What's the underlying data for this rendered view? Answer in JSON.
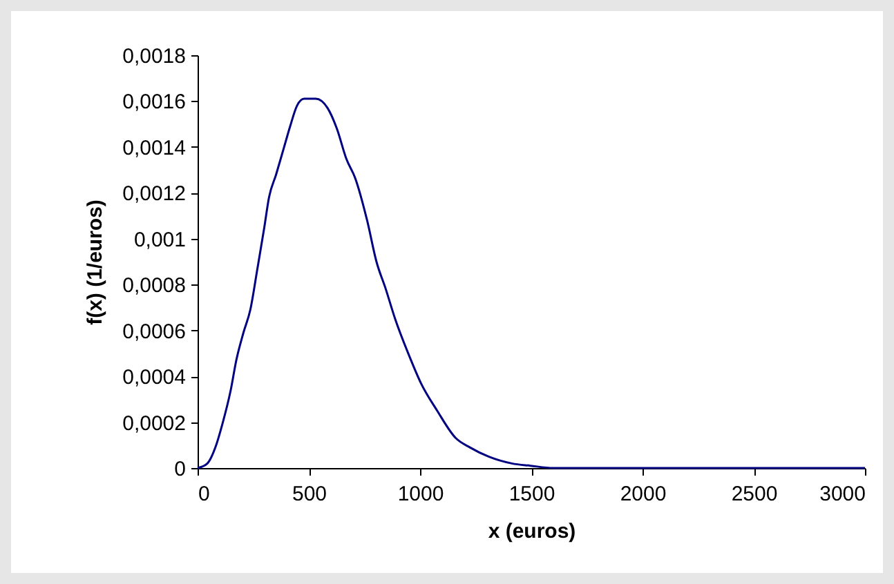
{
  "chart_data": {
    "type": "line",
    "xlabel": "x (euros)",
    "ylabel": "f(x) (1/euros)",
    "x": [
      0,
      44,
      80,
      111,
      149,
      174,
      206,
      237,
      269,
      300,
      321,
      353,
      389,
      416,
      447,
      479,
      531,
      584,
      626,
      668,
      710,
      762,
      804,
      846,
      888,
      951,
      1004,
      1077,
      1161,
      1224,
      1308,
      1413,
      1497,
      1600,
      2000,
      2500,
      3000
    ],
    "series": [
      {
        "color": "#000080",
        "values": [
          0,
          2e-05,
          9e-05,
          0.00019,
          0.00034,
          0.00047,
          0.00059,
          0.00069,
          0.00087,
          0.00105,
          0.00118,
          0.00128,
          0.0014,
          0.00149,
          0.00158,
          0.00161,
          0.00161,
          0.00157,
          0.00148,
          0.00135,
          0.00126,
          0.00108,
          0.0009,
          0.00078,
          0.00065,
          0.00049,
          0.00037,
          0.00025,
          0.00013,
          9e-05,
          5e-05,
          2e-05,
          1e-05,
          0,
          0,
          0,
          0
        ]
      }
    ],
    "xlim": [
      0,
      3000
    ],
    "xticks": [
      0,
      500,
      1000,
      1500,
      2000,
      2500,
      3000
    ],
    "ylim": [
      0,
      0.0018
    ],
    "yticks": [
      0,
      {
        "value": 0.0002,
        "label": "0,0002"
      },
      {
        "value": 0.0004,
        "label": "0,0004"
      },
      {
        "value": 0.0006,
        "label": "0,0006"
      },
      {
        "value": 0.0008,
        "label": "0,0008"
      },
      {
        "value": 0.001,
        "label": "0,001"
      },
      {
        "value": 0.0012,
        "label": "0,0012"
      },
      {
        "value": 0.0014,
        "label": "0,0014"
      },
      {
        "value": 0.0016,
        "label": "0,0016"
      },
      {
        "value": 0.0018,
        "label": "0,0018"
      }
    ],
    "grid": false,
    "legend": false,
    "marker": "none",
    "line_style": "solid"
  }
}
